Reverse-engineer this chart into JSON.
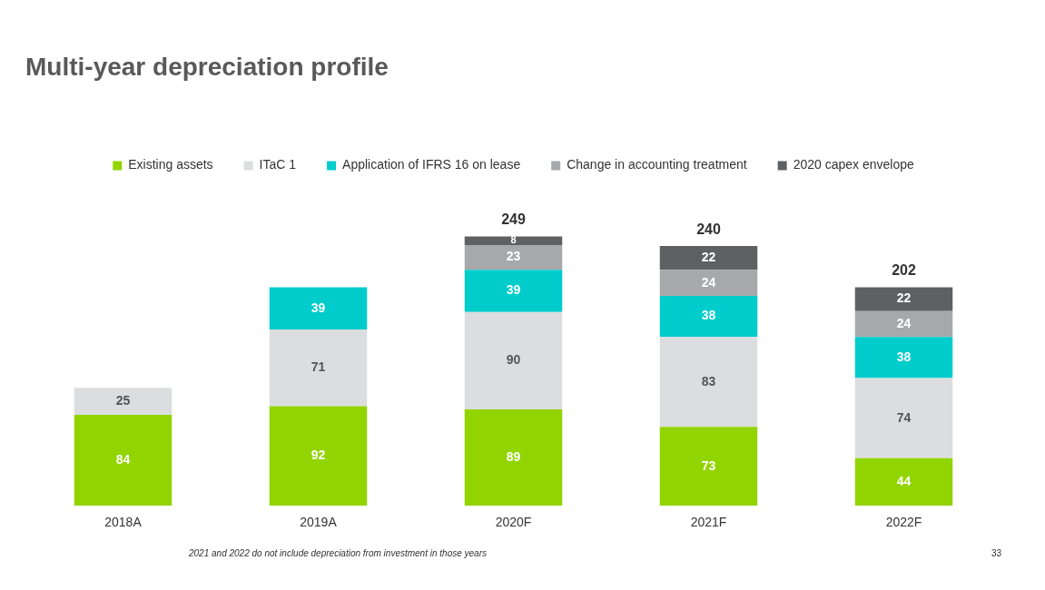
{
  "chart_data": {
    "type": "bar",
    "title": "Multi-year depreciation profile",
    "categories": [
      "2018A",
      "2019A",
      "2020F",
      "2021F",
      "2022F"
    ],
    "stacked": true,
    "data_labels": true,
    "legend": "top",
    "series": [
      {
        "name": "Existing assets",
        "color": "#92d400",
        "values": [
          84,
          92,
          89,
          73,
          44
        ]
      },
      {
        "name": "ITaC 1",
        "color": "#dcdddf",
        "values": [
          25,
          71,
          90,
          83,
          74
        ]
      },
      {
        "name": "Application of IFRS 16 on lease",
        "color": "#00cccc",
        "values": [
          null,
          39,
          39,
          38,
          38
        ]
      },
      {
        "name": "Change in accounting treatment",
        "color": "#a7a8aa",
        "values": [
          null,
          null,
          23,
          24,
          24
        ]
      },
      {
        "name": "2020 capex envelope",
        "color": "#5f6062",
        "values": [
          null,
          null,
          8,
          22,
          22
        ]
      }
    ],
    "totals": [
      null,
      null,
      "249",
      "240",
      "202"
    ],
    "annotations": [
      "2021 and 2022 do not include depreciation from investment in those years",
      "33"
    ]
  }
}
